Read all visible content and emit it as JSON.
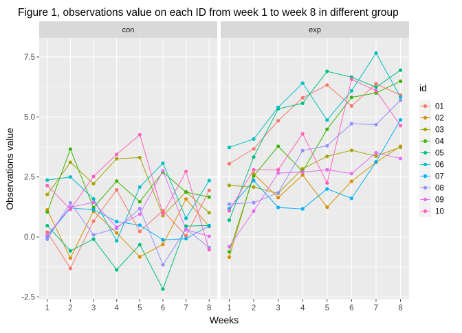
{
  "chart_data": {
    "type": "line",
    "title": "Figure 1, observations value on each ID from week 1 to week 8 in different group",
    "xlabel": "Weeks",
    "ylabel": "Observations value",
    "x": [
      1,
      2,
      3,
      4,
      5,
      6,
      7,
      8
    ],
    "xlim": [
      0.65,
      8.35
    ],
    "ylim": [
      -2.6,
      8.3
    ],
    "y_ticks": [
      -2.5,
      0.0,
      2.5,
      5.0,
      7.5
    ],
    "y_tick_labels": [
      "-2.5",
      "0.0",
      "2.5",
      "5.0",
      "7.5"
    ],
    "x_tick_labels": [
      "1",
      "2",
      "3",
      "4",
      "5",
      "6",
      "7",
      "8"
    ],
    "grid": true,
    "legend": {
      "title": "id",
      "position": "right",
      "entries": [
        "01",
        "02",
        "03",
        "04",
        "05",
        "06",
        "07",
        "08",
        "09",
        "10"
      ]
    },
    "colors": [
      "#F8766D",
      "#D89000",
      "#A3A500",
      "#39B600",
      "#00BF7D",
      "#00BFC4",
      "#00B0F6",
      "#9590FF",
      "#E76BF3",
      "#FF62BC"
    ],
    "facets": [
      {
        "label": "con",
        "series": [
          {
            "name": "01",
            "values": [
              0.2,
              -1.31,
              0.66,
              1.96,
              0.23,
              1.09,
              0.05,
              1.94
            ]
          },
          {
            "name": "02",
            "values": [
              1.13,
              -0.88,
              1.07,
              0.17,
              -0.83,
              -0.31,
              1.58,
              0.44
            ]
          },
          {
            "name": "03",
            "values": [
              1.77,
              3.11,
              2.22,
              3.26,
              3.31,
              0.89,
              1.88,
              1.01
            ]
          },
          {
            "name": "04",
            "values": [
              1.04,
              3.66,
              1.22,
              2.33,
              1.47,
              2.7,
              1.87,
              1.66
            ]
          },
          {
            "name": "05",
            "values": [
              0.47,
              -0.58,
              -0.09,
              -1.37,
              -0.32,
              -2.17,
              0.45,
              0.48
            ]
          },
          {
            "name": "06",
            "values": [
              2.37,
              2.5,
              1.59,
              -0.16,
              2.08,
              3.07,
              0.78,
              2.35
            ]
          },
          {
            "name": "07",
            "values": [
              0.03,
              1.21,
              1.13,
              0.64,
              0.49,
              -0.12,
              -0.07,
              0.46
            ]
          },
          {
            "name": "08",
            "values": [
              -0.09,
              1.42,
              0.09,
              0.36,
              1.18,
              -1.16,
              0.33,
              -0.44
            ]
          },
          {
            "name": "09",
            "values": [
              0.08,
              1.24,
              1.44,
              0.41,
              0.95,
              2.75,
              0.3,
              0.03
            ]
          },
          {
            "name": "10",
            "values": [
              2.14,
              1.15,
              2.52,
              3.44,
              4.26,
              0.97,
              2.73,
              -0.53
            ]
          }
        ]
      },
      {
        "label": "exp",
        "series": [
          {
            "name": "01",
            "values": [
              3.05,
              3.67,
              4.84,
              5.8,
              6.33,
              5.46,
              6.38,
              5.91
            ]
          },
          {
            "name": "02",
            "values": [
              -0.84,
              2.63,
              1.64,
              2.58,
              1.24,
              2.32,
              3.11,
              3.78
            ]
          },
          {
            "name": "03",
            "values": [
              2.15,
              2.08,
              1.82,
              2.84,
              3.36,
              3.61,
              3.37,
              3.74
            ]
          },
          {
            "name": "04",
            "values": [
              -0.62,
              2.54,
              3.78,
              2.73,
              4.49,
              5.82,
              6.0,
              6.49
            ]
          },
          {
            "name": "05",
            "values": [
              0.7,
              3.33,
              5.34,
              5.57,
              6.9,
              6.66,
              6.24,
              6.95
            ]
          },
          {
            "name": "06",
            "values": [
              3.73,
              4.08,
              5.4,
              6.41,
              4.87,
              6.09,
              7.66,
              5.83
            ]
          },
          {
            "name": "07",
            "values": [
              1.18,
              2.35,
              1.23,
              1.17,
              2.0,
              1.61,
              3.13,
              4.88
            ]
          },
          {
            "name": "08",
            "values": [
              1.37,
              1.43,
              1.84,
              3.6,
              3.8,
              4.72,
              4.68,
              5.7
            ]
          },
          {
            "name": "09",
            "values": [
              -0.4,
              1.08,
              2.66,
              2.7,
              2.8,
              2.64,
              3.51,
              3.27
            ]
          },
          {
            "name": "10",
            "values": [
              1.09,
              2.8,
              2.8,
              4.3,
              2.25,
              6.57,
              6.09,
              4.64
            ]
          }
        ]
      }
    ]
  }
}
